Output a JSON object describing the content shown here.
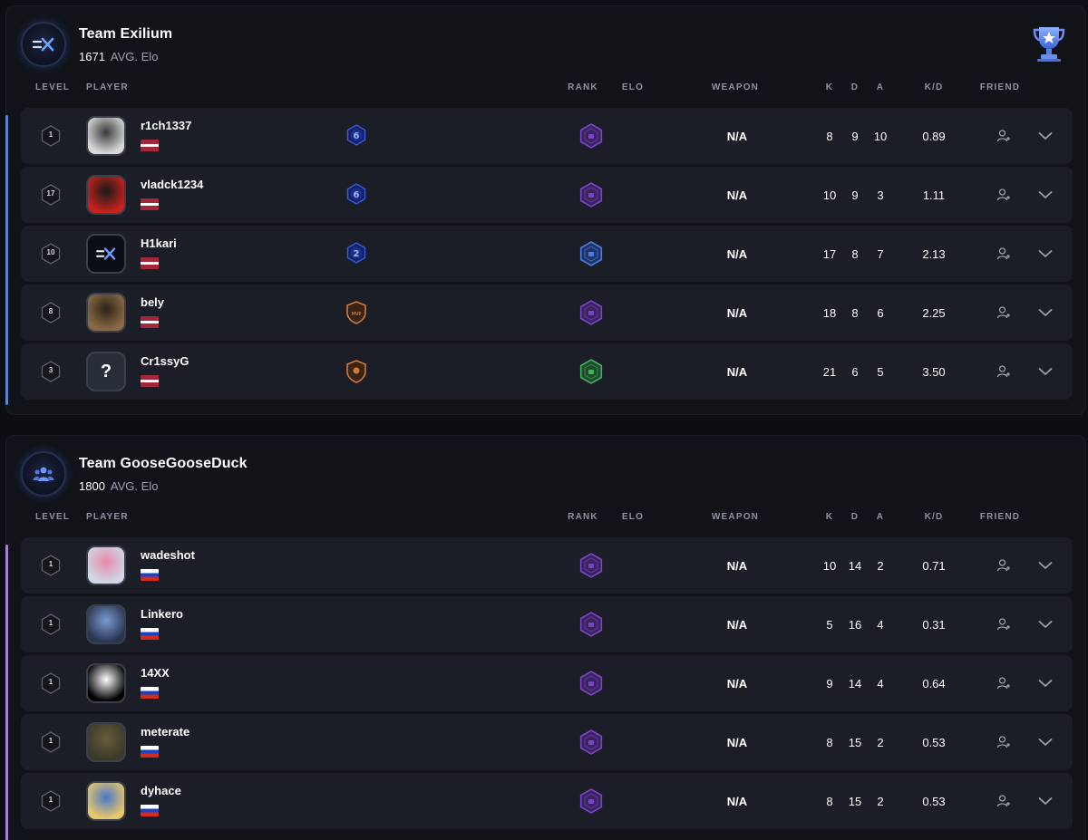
{
  "columns": {
    "level": "LEVEL",
    "player": "PLAYER",
    "rank": "RANK",
    "elo": "ELO",
    "weapon": "WEAPON",
    "k": "K",
    "d": "D",
    "a": "A",
    "kd": "K/D",
    "friend": "FRIEND"
  },
  "colors": {
    "card_bg": "#111319",
    "row_bg": "#1b1e26",
    "team1_accent": "#5f7fcf",
    "team2_accent": "#a67fd8",
    "rank_purple": "#8a4fd0",
    "rank_blue": "#3f6ed8",
    "rank_green": "#3faa55"
  },
  "teams": [
    {
      "name": "Team Exilium",
      "avg_elo": "1671",
      "avg_elo_label": "AVG. Elo",
      "logo_icon": "exilium-logo-icon",
      "trophy_icon": "trophy-icon",
      "players": [
        {
          "level": "1",
          "name": "r1ch1337",
          "flag": "latvia",
          "level_emblem": "6",
          "rank_color": "purple",
          "weapon": "N/A",
          "k": "8",
          "d": "9",
          "a": "10",
          "kd": "0.89"
        },
        {
          "level": "17",
          "name": "vladck1234",
          "flag": "latvia",
          "level_emblem": "6",
          "rank_color": "purple",
          "weapon": "N/A",
          "k": "10",
          "d": "9",
          "a": "3",
          "kd": "1.11"
        },
        {
          "level": "10",
          "name": "H1kari",
          "flag": "latvia",
          "level_emblem": "2",
          "rank_color": "blue",
          "weapon": "N/A",
          "k": "17",
          "d": "8",
          "a": "7",
          "kd": "2.13"
        },
        {
          "level": "8",
          "name": "bely",
          "flag": "latvia",
          "level_emblem": "MVP",
          "rank_color": "purple",
          "weapon": "N/A",
          "k": "18",
          "d": "8",
          "a": "6",
          "kd": "2.25"
        },
        {
          "level": "3",
          "name": "Cr1ssyG",
          "flag": "latvia",
          "level_emblem": "shield",
          "rank_color": "green",
          "weapon": "N/A",
          "k": "21",
          "d": "6",
          "a": "5",
          "kd": "3.50"
        }
      ]
    },
    {
      "name": "Team GooseGooseDuck",
      "avg_elo": "1800",
      "avg_elo_label": "AVG. Elo",
      "logo_icon": "group-users-icon",
      "players": [
        {
          "level": "1",
          "name": "wadeshot",
          "flag": "russia",
          "rank_color": "purple",
          "weapon": "N/A",
          "k": "10",
          "d": "14",
          "a": "2",
          "kd": "0.71"
        },
        {
          "level": "1",
          "name": "Linkero",
          "flag": "russia",
          "rank_color": "purple",
          "weapon": "N/A",
          "k": "5",
          "d": "16",
          "a": "4",
          "kd": "0.31"
        },
        {
          "level": "1",
          "name": "14XX",
          "flag": "russia",
          "rank_color": "purple",
          "weapon": "N/A",
          "k": "9",
          "d": "14",
          "a": "4",
          "kd": "0.64"
        },
        {
          "level": "1",
          "name": "meterate",
          "flag": "russia",
          "rank_color": "purple",
          "weapon": "N/A",
          "k": "8",
          "d": "15",
          "a": "2",
          "kd": "0.53"
        },
        {
          "level": "1",
          "name": "dyhace",
          "flag": "russia",
          "rank_color": "purple",
          "weapon": "N/A",
          "k": "8",
          "d": "15",
          "a": "2",
          "kd": "0.53"
        }
      ]
    }
  ]
}
